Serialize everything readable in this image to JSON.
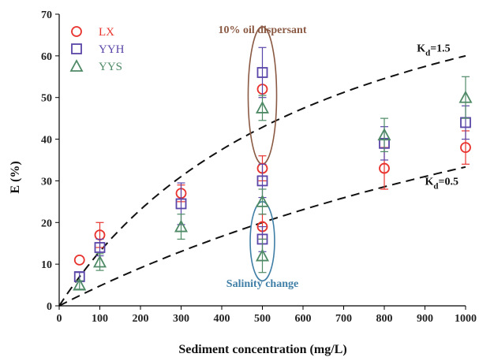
{
  "chart_data": {
    "type": "scatter",
    "xlabel": "Sediment concentration (mg/L)",
    "ylabel": "E (%)",
    "xlim": [
      0,
      1000
    ],
    "ylim": [
      0,
      70
    ],
    "xticks": [
      0,
      100,
      200,
      300,
      400,
      500,
      600,
      700,
      800,
      900,
      1000
    ],
    "yticks": [
      0,
      10,
      20,
      30,
      40,
      50,
      60,
      70
    ],
    "grid": false,
    "legend_position": "top-left",
    "series": [
      {
        "name": "LX",
        "marker": "circle",
        "color": "#e8332e",
        "x": [
          50,
          100,
          300,
          500,
          500,
          500,
          800,
          1000
        ],
        "y": [
          11,
          17,
          27,
          52,
          33,
          19,
          33,
          38
        ],
        "err": [
          0,
          3,
          2,
          0,
          3,
          3,
          5,
          4
        ]
      },
      {
        "name": "YYH",
        "marker": "square",
        "color": "#5a45a8",
        "x": [
          50,
          100,
          300,
          500,
          500,
          500,
          800,
          1000
        ],
        "y": [
          7,
          14,
          24.5,
          56,
          30,
          16,
          39,
          44
        ],
        "err": [
          1,
          2,
          5,
          6,
          4,
          3,
          4,
          4
        ]
      },
      {
        "name": "YYS",
        "marker": "triangle",
        "color": "#4e8a66",
        "x": [
          50,
          100,
          300,
          500,
          500,
          500,
          800,
          1000
        ],
        "y": [
          5,
          10.5,
          19,
          47.5,
          25,
          12,
          41,
          50
        ],
        "err": [
          1,
          2,
          3,
          3,
          3,
          4,
          4,
          5
        ]
      }
    ],
    "curves": [
      {
        "label_main": "K",
        "label_sub": "d",
        "label_rest": "=1.5",
        "Kd": 1.5,
        "Emax": 100,
        "label_x": 880,
        "label_y": 61
      },
      {
        "label_main": "K",
        "label_sub": "d",
        "label_rest": "=0.5",
        "Kd": 0.5,
        "Emax": 100,
        "label_x": 900,
        "label_y": 29
      }
    ],
    "annotations": [
      {
        "text": "10% oil dispersant",
        "color": "#8b5a44",
        "x": 500,
        "y": 65.5,
        "ellipse": {
          "cx": 500,
          "cy": 50.5,
          "rx": 35,
          "ry": 16.5,
          "color": "#8b5a44"
        }
      },
      {
        "text": "Salinity change",
        "color": "#3f7ea6",
        "x": 500,
        "y": 4.5,
        "ellipse": {
          "cx": 500,
          "cy": 15.5,
          "rx": 30,
          "ry": 9.5,
          "color": "#3f7ea6"
        }
      }
    ]
  }
}
